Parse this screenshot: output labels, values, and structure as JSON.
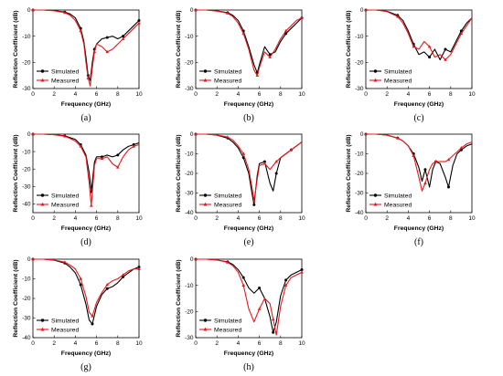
{
  "colors": {
    "simulated": "#000000",
    "measured": "#e8171c",
    "axis": "#000000"
  },
  "markers": {
    "simulated": "circle",
    "measured": "triangle"
  },
  "chart_data": [
    {
      "type": "line",
      "panel_label": "(a)",
      "xlabel": "Frequency (GHz)",
      "ylabel": "Reflection Coefficient (dB)",
      "xlim": [
        0,
        10
      ],
      "ylim": [
        -30,
        0
      ],
      "xticks": [
        "0",
        "2",
        "4",
        "6",
        "8",
        "10"
      ],
      "yticks": [
        "0",
        "-10",
        "-20",
        "-30"
      ],
      "grid": false,
      "legend": {
        "placement": "lower-left"
      },
      "series": [
        {
          "name": "Simulated",
          "x": [
            0,
            1,
            2,
            3,
            3.5,
            4,
            4.5,
            4.8,
            5,
            5.2,
            5.4,
            5.6,
            5.8,
            6,
            6.5,
            7,
            7.5,
            8,
            8.5,
            9,
            9.5,
            10
          ],
          "y": [
            0,
            0,
            -0.2,
            -0.8,
            -1.5,
            -3,
            -7,
            -12,
            -18,
            -25,
            -27,
            -20,
            -15,
            -13,
            -11,
            -10.5,
            -10,
            -11,
            -10,
            -8,
            -6,
            -4
          ]
        },
        {
          "name": "Measured",
          "x": [
            0,
            1,
            2,
            3,
            3.5,
            4,
            4.5,
            4.8,
            5,
            5.2,
            5.4,
            5.6,
            5.8,
            6,
            6.5,
            7,
            7.5,
            8,
            8.5,
            9,
            9.5,
            10
          ],
          "y": [
            0,
            0,
            -0.3,
            -1,
            -2,
            -4,
            -8,
            -13,
            -20,
            -26,
            -29,
            -22,
            -16,
            -13,
            -14,
            -16,
            -15,
            -13,
            -11,
            -9,
            -7,
            -5
          ]
        }
      ]
    },
    {
      "type": "line",
      "panel_label": "(b)",
      "xlabel": "Frequency (GHz)",
      "ylabel": "Reflection Coefficient (dB)",
      "xlim": [
        0,
        10
      ],
      "ylim": [
        -30,
        0
      ],
      "xticks": [
        "0",
        "2",
        "4",
        "6",
        "8",
        "10"
      ],
      "yticks": [
        "0",
        "-10",
        "-20",
        "-30"
      ],
      "grid": false,
      "legend": {
        "placement": "lower-left"
      },
      "series": [
        {
          "name": "Simulated",
          "x": [
            0,
            1,
            2,
            3,
            3.5,
            4,
            4.5,
            5,
            5.5,
            5.8,
            6,
            6.5,
            7,
            7.5,
            8,
            8.5,
            9,
            9.5,
            10
          ],
          "y": [
            0,
            0,
            -0.3,
            -1,
            -2,
            -4,
            -8,
            -14,
            -21,
            -24,
            -21,
            -14,
            -17,
            -16,
            -12,
            -9,
            -7,
            -5,
            -3
          ]
        },
        {
          "name": "Measured",
          "x": [
            0,
            1,
            2,
            3,
            3.5,
            4,
            4.5,
            5,
            5.5,
            5.8,
            6,
            6.5,
            7,
            7.5,
            8,
            8.5,
            9,
            9.5,
            10
          ],
          "y": [
            0,
            0,
            -0.4,
            -1.2,
            -2.5,
            -5,
            -9,
            -15,
            -23,
            -25,
            -22,
            -16,
            -18,
            -15,
            -11,
            -8,
            -6,
            -4,
            -3
          ]
        }
      ]
    },
    {
      "type": "line",
      "panel_label": "(c)",
      "xlabel": "Frequency (GHz)",
      "ylabel": "Reflection Coefficient (dB)",
      "xlim": [
        0,
        10
      ],
      "ylim": [
        -30,
        0
      ],
      "xticks": [
        "0",
        "2",
        "4",
        "6",
        "8",
        "10"
      ],
      "yticks": [
        "0",
        "-10",
        "-20",
        "-30"
      ],
      "grid": false,
      "legend": {
        "placement": "lower-left"
      },
      "series": [
        {
          "name": "Simulated",
          "x": [
            0,
            1,
            2,
            3,
            3.5,
            4,
            4.5,
            5,
            5.5,
            6,
            6.5,
            7,
            7.5,
            8,
            8.5,
            9,
            9.5,
            10
          ],
          "y": [
            0,
            0,
            -0.5,
            -2,
            -4,
            -8,
            -13,
            -17,
            -16,
            -18,
            -15,
            -19,
            -15,
            -16,
            -12,
            -8,
            -5,
            -3
          ]
        },
        {
          "name": "Measured",
          "x": [
            0,
            1,
            2,
            3,
            3.5,
            4,
            4.5,
            5,
            5.5,
            6,
            6.5,
            7,
            7.5,
            8,
            8.5,
            9,
            9.5,
            10
          ],
          "y": [
            0,
            0,
            -0.6,
            -2.5,
            -5,
            -9,
            -14,
            -15,
            -12,
            -14,
            -18,
            -17,
            -19,
            -17,
            -13,
            -9,
            -6,
            -3
          ]
        }
      ]
    },
    {
      "type": "line",
      "panel_label": "(d)",
      "xlabel": "Frequency (GHz)",
      "ylabel": "Reflection Coefficient (dB)",
      "xlim": [
        0,
        10
      ],
      "ylim": [
        -45,
        0
      ],
      "xticks": [
        "0",
        "2",
        "4",
        "6",
        "8",
        "10"
      ],
      "yticks": [
        "0",
        "-10",
        "-20",
        "-30",
        "-40"
      ],
      "grid": false,
      "legend": {
        "placement": "lower-left"
      },
      "series": [
        {
          "name": "Simulated",
          "x": [
            0,
            1,
            2,
            3,
            3.5,
            4,
            4.5,
            5,
            5.3,
            5.5,
            5.8,
            6,
            6.5,
            7,
            7.5,
            8,
            8.5,
            9,
            9.5,
            10
          ],
          "y": [
            0,
            0,
            -0.3,
            -1,
            -2,
            -3,
            -6,
            -12,
            -22,
            -33,
            -16,
            -13,
            -13,
            -12,
            -13,
            -12,
            -9,
            -7,
            -6,
            -5
          ]
        },
        {
          "name": "Measured",
          "x": [
            0,
            1,
            2,
            3,
            3.5,
            4,
            4.5,
            5,
            5.3,
            5.5,
            5.8,
            6,
            6.5,
            7,
            7.5,
            8,
            8.5,
            9,
            9.5,
            10
          ],
          "y": [
            0,
            0,
            -0.3,
            -1.2,
            -2.5,
            -4,
            -7,
            -13,
            -28,
            -41,
            -18,
            -14,
            -14,
            -13,
            -17,
            -19,
            -13,
            -9,
            -7,
            -6
          ]
        }
      ]
    },
    {
      "type": "line",
      "panel_label": "(e)",
      "xlabel": "Frequency (GHz)",
      "ylabel": "Reflection Coefficient (dB)",
      "xlim": [
        0,
        10
      ],
      "ylim": [
        -40,
        0
      ],
      "xticks": [
        "0",
        "2",
        "4",
        "6",
        "8",
        "10"
      ],
      "yticks": [
        "0",
        "-10",
        "-20",
        "-30",
        "-40"
      ],
      "grid": false,
      "legend": {
        "placement": "lower-left"
      },
      "series": [
        {
          "name": "Simulated",
          "x": [
            0,
            1,
            2,
            3,
            3.5,
            4,
            4.5,
            5,
            5.3,
            5.5,
            5.8,
            6,
            6.5,
            7,
            7.3,
            7.6,
            8,
            8.5,
            9,
            9.5,
            10
          ],
          "y": [
            0,
            0,
            -0.5,
            -2,
            -4,
            -7,
            -12,
            -20,
            -30,
            -36,
            -21,
            -15,
            -14,
            -25,
            -29,
            -20,
            -12,
            -10,
            -8,
            -6,
            -4
          ]
        },
        {
          "name": "Measured",
          "x": [
            0,
            1,
            2,
            3,
            3.5,
            4,
            4.5,
            5,
            5.3,
            5.5,
            5.8,
            6,
            6.5,
            7,
            7.3,
            7.6,
            8,
            8.5,
            9,
            9.5,
            10
          ],
          "y": [
            0,
            0,
            -0.4,
            -1.5,
            -3,
            -6,
            -10,
            -18,
            -27,
            -34,
            -23,
            -16,
            -15,
            -18,
            -16,
            -14,
            -12,
            -10,
            -8,
            -6,
            -4
          ]
        }
      ]
    },
    {
      "type": "line",
      "panel_label": "(f)",
      "xlabel": "Frequency (GHz)",
      "ylabel": "Reflection Coefficient (dB)",
      "xlim": [
        0,
        10
      ],
      "ylim": [
        -40,
        0
      ],
      "xticks": [
        "0",
        "2",
        "4",
        "6",
        "8",
        "10"
      ],
      "yticks": [
        "0",
        "-10",
        "-20",
        "-30",
        "-40"
      ],
      "grid": false,
      "legend": {
        "placement": "lower-left"
      },
      "series": [
        {
          "name": "Simulated",
          "x": [
            0,
            1,
            2,
            3,
            3.5,
            4,
            4.5,
            5,
            5.3,
            5.6,
            6,
            6.3,
            6.6,
            7,
            7.5,
            7.8,
            8.2,
            8.6,
            9,
            9.5,
            10
          ],
          "y": [
            0,
            0,
            -0.5,
            -2,
            -3.5,
            -6,
            -10,
            -17,
            -24,
            -18,
            -27,
            -18,
            -14,
            -15,
            -22,
            -27,
            -16,
            -10,
            -8,
            -6,
            -5
          ]
        },
        {
          "name": "Measured",
          "x": [
            0,
            1,
            2,
            3,
            3.5,
            4,
            4.5,
            5,
            5.3,
            5.6,
            6,
            6.3,
            6.6,
            7,
            7.5,
            7.8,
            8.2,
            8.6,
            9,
            9.5,
            10
          ],
          "y": [
            0,
            0,
            -0.5,
            -2,
            -3.5,
            -6,
            -11,
            -22,
            -29,
            -25,
            -18,
            -15,
            -14,
            -14,
            -14,
            -13,
            -11,
            -9,
            -7,
            -5,
            -4
          ]
        }
      ]
    },
    {
      "type": "line",
      "panel_label": "(g)",
      "xlabel": "Frequency (GHz)",
      "ylabel": "Reflection Coefficient (dB)",
      "xlim": [
        0,
        10
      ],
      "ylim": [
        -40,
        0
      ],
      "xticks": [
        "0",
        "2",
        "4",
        "6",
        "8",
        "10"
      ],
      "yticks": [
        "0",
        "-10",
        "-20",
        "-30",
        "-40"
      ],
      "grid": false,
      "legend": {
        "placement": "lower-left"
      },
      "series": [
        {
          "name": "Simulated",
          "x": [
            0,
            1,
            2,
            3,
            3.5,
            4,
            4.5,
            5,
            5.3,
            5.6,
            6,
            6.5,
            7,
            7.5,
            8,
            8.5,
            9,
            9.5,
            10
          ],
          "y": [
            0,
            0,
            -0.5,
            -2,
            -4,
            -7,
            -13,
            -23,
            -31,
            -33,
            -24,
            -18,
            -15,
            -14,
            -12,
            -9,
            -7,
            -5,
            -4
          ]
        },
        {
          "name": "Measured",
          "x": [
            0,
            1,
            2,
            3,
            3.5,
            4,
            4.5,
            5,
            5.3,
            5.6,
            6,
            6.5,
            7,
            7.5,
            8,
            8.5,
            9,
            9.5,
            10
          ],
          "y": [
            0,
            0,
            -0.4,
            -1.5,
            -3,
            -5,
            -10,
            -19,
            -27,
            -29,
            -22,
            -17,
            -13,
            -11,
            -10,
            -8,
            -6,
            -5,
            -5
          ]
        }
      ]
    },
    {
      "type": "line",
      "panel_label": "(h)",
      "xlabel": "Frequency (GHz)",
      "ylabel": "Reflection Coefficient (dB)",
      "xlim": [
        0,
        10
      ],
      "ylim": [
        -30,
        0
      ],
      "xticks": [
        "0",
        "2",
        "4",
        "6",
        "8",
        "10"
      ],
      "yticks": [
        "0",
        "-10",
        "-20",
        "-30"
      ],
      "grid": false,
      "legend": {
        "placement": "lower-left"
      },
      "series": [
        {
          "name": "Simulated",
          "x": [
            0,
            1,
            2,
            3,
            3.5,
            4,
            4.5,
            5,
            5.5,
            6,
            6.5,
            7,
            7.3,
            7.6,
            8,
            8.5,
            9,
            9.5,
            10
          ],
          "y": [
            0,
            0,
            -0.3,
            -1,
            -2,
            -4,
            -7,
            -11,
            -13,
            -11,
            -15,
            -22,
            -28,
            -24,
            -14,
            -8,
            -6,
            -5,
            -4
          ]
        },
        {
          "name": "Measured",
          "x": [
            0,
            1,
            2,
            3,
            3.5,
            4,
            4.5,
            5,
            5.5,
            6,
            6.5,
            7,
            7.3,
            7.6,
            8,
            8.5,
            9,
            9.5,
            10
          ],
          "y": [
            0,
            0,
            -0.3,
            -1.2,
            -2.5,
            -5,
            -10,
            -19,
            -24,
            -19,
            -15,
            -17,
            -23,
            -29,
            -18,
            -10,
            -7,
            -6,
            -5
          ]
        }
      ]
    }
  ]
}
